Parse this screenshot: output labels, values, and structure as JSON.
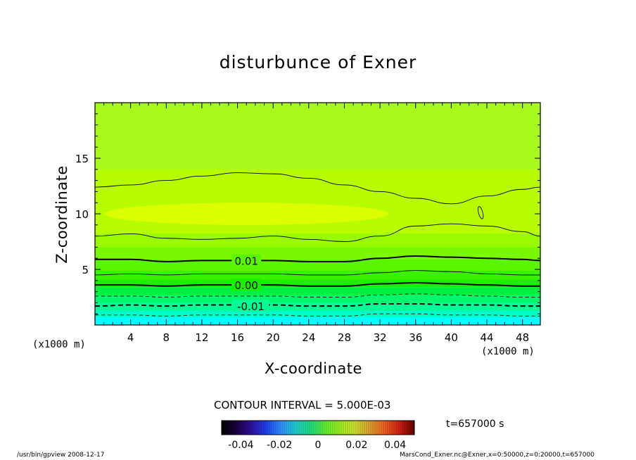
{
  "chart_data": {
    "type": "heatmap",
    "title": "disturbunce of Exner",
    "xlabel": "X-coordinate",
    "ylabel": "Z-coordinate",
    "x_unit_left": "(x1000 m)",
    "x_unit_right": "(x1000 m)",
    "xlim": [
      0,
      50
    ],
    "ylim": [
      0,
      20
    ],
    "x_ticks": [
      4,
      8,
      12,
      16,
      20,
      24,
      28,
      32,
      36,
      40,
      44,
      48
    ],
    "y_ticks": [
      5,
      10,
      15
    ],
    "contour_interval_text": "CONTOUR INTERVAL = 5.000E-03",
    "contour_labels": [
      {
        "text": "0.01",
        "x": 17,
        "z": 5.8
      },
      {
        "text": "0.00",
        "x": 17,
        "z": 3.6
      },
      {
        "text": "-0.01",
        "x": 17.5,
        "z": 1.7
      }
    ],
    "contour_lines": [
      {
        "level": 0.02,
        "style": "thin-solid",
        "x": [
          0,
          4,
          8,
          12,
          16,
          20,
          24,
          28,
          32,
          36,
          40,
          44,
          48,
          50
        ],
        "z": [
          12.4,
          12.6,
          13.0,
          13.4,
          13.7,
          13.6,
          13.2,
          12.6,
          12.0,
          11.4,
          10.9,
          11.6,
          12.2,
          12.4
        ]
      },
      {
        "level": 0.015,
        "style": "thin-solid",
        "x": [
          0,
          4,
          8,
          12,
          16,
          20,
          24,
          28,
          32,
          36,
          40,
          44,
          48,
          50
        ],
        "z": [
          8.0,
          8.2,
          7.8,
          7.7,
          7.8,
          8.0,
          7.7,
          7.5,
          8.0,
          8.9,
          9.1,
          8.9,
          8.4,
          8.0
        ]
      },
      {
        "level": 0.01,
        "style": "thick-solid",
        "x": [
          0,
          4,
          8,
          12,
          16,
          20,
          24,
          28,
          32,
          36,
          40,
          44,
          48,
          50
        ],
        "z": [
          5.9,
          5.9,
          5.7,
          5.8,
          5.8,
          5.8,
          5.7,
          5.7,
          6.0,
          6.2,
          6.1,
          6.0,
          5.9,
          5.8
        ]
      },
      {
        "level": 0.005,
        "style": "thin-solid",
        "x": [
          0,
          4,
          8,
          12,
          16,
          20,
          24,
          28,
          32,
          36,
          40,
          44,
          48,
          50
        ],
        "z": [
          4.5,
          4.6,
          4.5,
          4.6,
          4.6,
          4.6,
          4.5,
          4.5,
          4.7,
          4.9,
          4.8,
          4.6,
          4.5,
          4.5
        ]
      },
      {
        "level": 0.0,
        "style": "thick-solid",
        "x": [
          0,
          4,
          8,
          12,
          16,
          20,
          24,
          28,
          32,
          36,
          40,
          44,
          48,
          50
        ],
        "z": [
          3.6,
          3.6,
          3.5,
          3.6,
          3.6,
          3.6,
          3.5,
          3.5,
          3.7,
          3.8,
          3.7,
          3.6,
          3.5,
          3.5
        ]
      },
      {
        "level": -0.005,
        "style": "thin-dashed",
        "x": [
          0,
          4,
          8,
          12,
          16,
          20,
          24,
          28,
          32,
          36,
          40,
          44,
          48,
          50
        ],
        "z": [
          2.6,
          2.6,
          2.5,
          2.6,
          2.6,
          2.6,
          2.5,
          2.5,
          2.7,
          2.8,
          2.7,
          2.6,
          2.5,
          2.5
        ]
      },
      {
        "level": -0.01,
        "style": "thick-dashed",
        "x": [
          0,
          4,
          8,
          12,
          16,
          20,
          24,
          28,
          32,
          36,
          40,
          44,
          48,
          50
        ],
        "z": [
          1.7,
          1.8,
          1.7,
          1.8,
          1.8,
          1.8,
          1.7,
          1.7,
          1.9,
          1.9,
          1.8,
          1.8,
          1.7,
          1.7
        ]
      },
      {
        "level": -0.015,
        "style": "thin-dashed",
        "x": [
          0,
          4,
          8,
          12,
          16,
          20,
          24,
          28,
          32,
          36,
          40,
          44,
          48,
          50
        ],
        "z": [
          0.9,
          0.9,
          0.8,
          0.9,
          0.9,
          0.9,
          0.8,
          0.8,
          1.0,
          1.0,
          0.9,
          0.9,
          0.8,
          0.8
        ]
      }
    ],
    "color_bands": [
      {
        "z_from": 0,
        "z_to": 0.7,
        "color": "#00ffff"
      },
      {
        "z_from": 0.7,
        "z_to": 1.3,
        "color": "#00ffc8"
      },
      {
        "z_from": 1.3,
        "z_to": 2.0,
        "color": "#00ff96"
      },
      {
        "z_from": 2.0,
        "z_to": 2.7,
        "color": "#00f86e"
      },
      {
        "z_from": 2.7,
        "z_to": 3.4,
        "color": "#00f040"
      },
      {
        "z_from": 3.4,
        "z_to": 4.1,
        "color": "#18f000"
      },
      {
        "z_from": 4.1,
        "z_to": 4.9,
        "color": "#38f200"
      },
      {
        "z_from": 4.9,
        "z_to": 5.9,
        "color": "#5af500"
      },
      {
        "z_from": 5.9,
        "z_to": 7.0,
        "color": "#7af800"
      },
      {
        "z_from": 7.0,
        "z_to": 8.2,
        "color": "#9afa00"
      },
      {
        "z_from": 8.2,
        "z_to": 20,
        "color": "#b8fc00"
      }
    ],
    "peak_region_color": "#e0ff00",
    "upper_color": "#a6fa20",
    "colorbar": {
      "min": -0.05,
      "max": 0.05,
      "tick_labels": [
        "-0.04",
        "-0.02",
        "0",
        "0.02",
        "0.04"
      ],
      "tick_values": [
        -0.04,
        -0.02,
        0,
        0.02,
        0.04
      ],
      "colors": [
        "#000000",
        "#1e0044",
        "#3010a0",
        "#2040f0",
        "#3090ff",
        "#20d0d0",
        "#20e080",
        "#60f030",
        "#a0f020",
        "#d0e030",
        "#e0a030",
        "#f06020",
        "#d02010",
        "#600000"
      ]
    }
  },
  "time_text": "t=657000 s",
  "footer_left": "/usr/bin/gpview   2008-12-17",
  "footer_right": "MarsCond_Exner.nc@Exner,x=0:50000,z=0:20000,t=657000"
}
